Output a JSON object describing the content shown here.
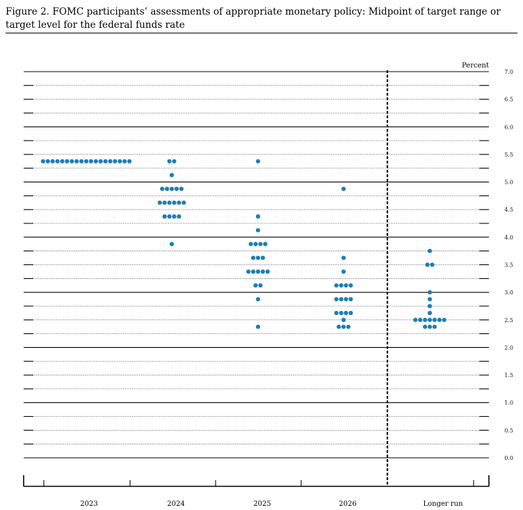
{
  "title": "Figure 2.  FOMC participants’ assessments of appropriate monetary policy: Midpoint of target range or target level for the federal funds rate",
  "chart_data": {
    "type": "scatter",
    "subtype": "dot-plot",
    "title": "Figure 2.  FOMC participants’ assessments of appropriate monetary policy: Midpoint of target range or target level for the federal funds rate",
    "unit_label": "Percent",
    "categories": [
      "2023",
      "2024",
      "2025",
      "2026",
      "Longer run"
    ],
    "ylim": [
      0.0,
      7.0
    ],
    "yticks": [
      0.0,
      0.5,
      1.0,
      1.5,
      2.0,
      2.5,
      3.0,
      3.5,
      4.0,
      4.5,
      5.0,
      5.5,
      6.0,
      6.5,
      7.0
    ],
    "ytick_labels": [
      "0.0",
      "0.5",
      "1.0",
      "1.5",
      "2.0",
      "2.5",
      "3.0",
      "3.5",
      "4.0",
      "4.5",
      "5.0",
      "5.5",
      "6.0",
      "6.5",
      "7.0"
    ],
    "dot_color": "#1f7db5",
    "series": [
      {
        "category": "2023",
        "points": [
          {
            "y": 5.375,
            "count": 19
          }
        ]
      },
      {
        "category": "2024",
        "points": [
          {
            "y": 5.375,
            "count": 2
          },
          {
            "y": 5.125,
            "count": 1
          },
          {
            "y": 4.875,
            "count": 5
          },
          {
            "y": 4.625,
            "count": 6
          },
          {
            "y": 4.375,
            "count": 4
          },
          {
            "y": 3.875,
            "count": 1
          }
        ]
      },
      {
        "category": "2025",
        "points": [
          {
            "y": 5.375,
            "count": 1
          },
          {
            "y": 4.375,
            "count": 1
          },
          {
            "y": 4.125,
            "count": 1
          },
          {
            "y": 3.875,
            "count": 4
          },
          {
            "y": 3.625,
            "count": 3
          },
          {
            "y": 3.375,
            "count": 5
          },
          {
            "y": 3.125,
            "count": 2
          },
          {
            "y": 2.875,
            "count": 1
          },
          {
            "y": 2.375,
            "count": 1
          }
        ]
      },
      {
        "category": "2026",
        "points": [
          {
            "y": 4.875,
            "count": 1
          },
          {
            "y": 3.625,
            "count": 1
          },
          {
            "y": 3.375,
            "count": 1
          },
          {
            "y": 3.125,
            "count": 4
          },
          {
            "y": 2.875,
            "count": 4
          },
          {
            "y": 2.625,
            "count": 4
          },
          {
            "y": 2.5,
            "count": 1
          },
          {
            "y": 2.375,
            "count": 3
          }
        ]
      },
      {
        "category": "Longer run",
        "points": [
          {
            "y": 3.75,
            "count": 1
          },
          {
            "y": 3.5,
            "count": 2
          },
          {
            "y": 3.0,
            "count": 1
          },
          {
            "y": 2.875,
            "count": 1
          },
          {
            "y": 2.75,
            "count": 1
          },
          {
            "y": 2.625,
            "count": 1
          },
          {
            "y": 2.5,
            "count": 7
          },
          {
            "y": 2.375,
            "count": 3
          }
        ]
      }
    ]
  }
}
